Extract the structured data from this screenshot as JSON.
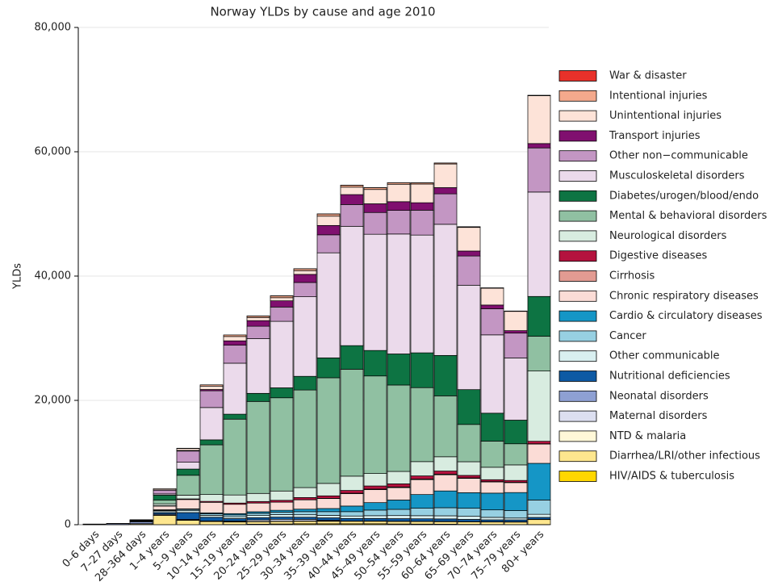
{
  "chart_data": {
    "type": "stacked-bar",
    "title": "Norway YLDs by cause and age 2010",
    "y_label": "YLDs",
    "categories": [
      "0–6 days",
      "7–27 days",
      "28–364 days",
      "1–4 years",
      "5–9 years",
      "10–14 years",
      "15–19 years",
      "20–24 years",
      "25–29 years",
      "30–34 years",
      "35–39 years",
      "40–44 years",
      "45–49 years",
      "50–54 years",
      "55–59 years",
      "60–64 years",
      "65–69 years",
      "70–74 years",
      "75–79 years",
      "80+ years"
    ],
    "ylim": [
      0,
      80000
    ],
    "yticks": [
      0,
      {
        "value": 20000,
        "label": "20,000"
      },
      {
        "value": 40000,
        "label": "40,000"
      },
      {
        "value": 60000,
        "label": "60,000"
      },
      {
        "value": 80000,
        "label": "80,000"
      }
    ],
    "grid": true,
    "series": [
      {
        "name": "War & disaster",
        "color": "#e8312a",
        "values": [
          0,
          0,
          0,
          0,
          0,
          0,
          0,
          10,
          10,
          10,
          10,
          10,
          10,
          10,
          10,
          10,
          10,
          10,
          10,
          10
        ]
      },
      {
        "name": "Intentional injuries",
        "color": "#f4a98c",
        "values": [
          0,
          0,
          0,
          0,
          50,
          200,
          250,
          250,
          300,
          300,
          350,
          300,
          300,
          250,
          200,
          150,
          100,
          50,
          50,
          50
        ]
      },
      {
        "name": "Unintentional injuries",
        "color": "#fde3d8",
        "values": [
          10,
          20,
          50,
          200,
          300,
          550,
          700,
          500,
          500,
          600,
          1500,
          1200,
          2300,
          2800,
          3000,
          3800,
          3800,
          2700,
          3100,
          7700
        ]
      },
      {
        "name": "Transport injuries",
        "color": "#800f6f",
        "values": [
          0,
          0,
          0,
          50,
          100,
          200,
          700,
          900,
          1000,
          1300,
          1500,
          1600,
          1400,
          1400,
          1200,
          1000,
          800,
          600,
          400,
          700
        ]
      },
      {
        "name": "Other non−communicable",
        "color": "#c396c3",
        "values": [
          0,
          0,
          80,
          600,
          1800,
          2700,
          2900,
          2000,
          2300,
          2300,
          2900,
          3500,
          3500,
          3800,
          4000,
          4900,
          4700,
          4200,
          4000,
          7100
        ]
      },
      {
        "name": "Musculoskeletal disorders",
        "color": "#ebdaeb",
        "values": [
          0,
          0,
          20,
          200,
          1100,
          5200,
          8200,
          8800,
          10700,
          12800,
          16900,
          19200,
          18700,
          19300,
          18950,
          21100,
          16800,
          12600,
          10000,
          16800
        ]
      },
      {
        "name": "Diabetes/urogen/blood/endo",
        "color": "#0d7443",
        "values": [
          0,
          0,
          0,
          800,
          1000,
          800,
          800,
          1300,
          1600,
          2200,
          3200,
          3800,
          4100,
          5000,
          5600,
          6500,
          5600,
          4500,
          3800,
          6400
        ]
      },
      {
        "name": "Mental & behavioral disorders",
        "color": "#90c0a2",
        "values": [
          0,
          0,
          0,
          600,
          3200,
          8000,
          12200,
          14800,
          15000,
          15700,
          17000,
          17200,
          15700,
          13900,
          11900,
          9800,
          6000,
          4200,
          3400,
          5600
        ]
      },
      {
        "name": "Neurological disorders",
        "color": "#d8ece0",
        "values": [
          0,
          0,
          30,
          300,
          600,
          1100,
          1300,
          1300,
          1500,
          1600,
          2000,
          2300,
          2000,
          2000,
          2300,
          2300,
          2200,
          2000,
          2500,
          11300
        ]
      },
      {
        "name": "Digestive diseases",
        "color": "#b4123e",
        "values": [
          0,
          0,
          0,
          50,
          100,
          150,
          200,
          250,
          300,
          350,
          400,
          450,
          500,
          500,
          500,
          500,
          400,
          300,
          300,
          400
        ]
      },
      {
        "name": "Cirrhosis",
        "color": "#e29b92",
        "values": [
          0,
          0,
          0,
          0,
          0,
          0,
          0,
          0,
          0,
          20,
          40,
          60,
          80,
          100,
          100,
          100,
          80,
          60,
          50,
          50
        ]
      },
      {
        "name": "Chronic respiratory diseases",
        "color": "#fbdcd6",
        "values": [
          0,
          0,
          50,
          600,
          1500,
          1700,
          1500,
          1400,
          1300,
          1500,
          1600,
          2000,
          2100,
          2000,
          2400,
          2600,
          2300,
          1800,
          1600,
          3100
        ]
      },
      {
        "name": "Cardio & circulatory diseases",
        "color": "#1596c6",
        "values": [
          0,
          0,
          0,
          100,
          100,
          150,
          200,
          250,
          300,
          400,
          500,
          900,
          1200,
          1500,
          2200,
          2700,
          2500,
          2700,
          2900,
          5900
        ]
      },
      {
        "name": "Cancer",
        "color": "#97d0e2",
        "values": [
          0,
          0,
          0,
          100,
          200,
          250,
          300,
          350,
          400,
          500,
          600,
          700,
          900,
          1000,
          1200,
          1300,
          1300,
          1200,
          1200,
          2300
        ]
      },
      {
        "name": "Other communicable",
        "color": "#d9eff0",
        "values": [
          0,
          0,
          50,
          250,
          300,
          300,
          300,
          350,
          400,
          400,
          400,
          400,
          450,
          500,
          500,
          500,
          500,
          400,
          300,
          500
        ]
      },
      {
        "name": "Nutritional deficiencies",
        "color": "#0e5aa4",
        "values": [
          0,
          10,
          50,
          250,
          1100,
          600,
          400,
          350,
          350,
          350,
          400,
          400,
          400,
          400,
          400,
          400,
          350,
          300,
          300,
          300
        ]
      },
      {
        "name": "Neonatal disorders",
        "color": "#8ea0d3",
        "values": [
          80,
          150,
          300,
          150,
          100,
          50,
          50,
          0,
          0,
          0,
          0,
          0,
          0,
          0,
          0,
          0,
          0,
          0,
          0,
          0
        ]
      },
      {
        "name": "Maternal disorders",
        "color": "#dcdff0",
        "values": [
          0,
          0,
          0,
          0,
          0,
          0,
          50,
          250,
          300,
          250,
          100,
          0,
          0,
          0,
          0,
          0,
          0,
          0,
          0,
          0
        ]
      },
      {
        "name": "NTD & malaria",
        "color": "#fff8d8",
        "values": [
          0,
          0,
          20,
          50,
          50,
          50,
          50,
          50,
          50,
          50,
          50,
          50,
          50,
          50,
          50,
          50,
          50,
          50,
          50,
          50
        ]
      },
      {
        "name": "Diarrhea/LRI/other infectious",
        "color": "#fde68e",
        "values": [
          10,
          20,
          150,
          1500,
          700,
          500,
          400,
          400,
          400,
          400,
          400,
          400,
          400,
          400,
          400,
          400,
          400,
          400,
          400,
          800
        ]
      },
      {
        "name": "HIV/AIDS & tuberculosis",
        "color": "#ffd700",
        "values": [
          0,
          0,
          0,
          0,
          0,
          0,
          30,
          80,
          120,
          150,
          150,
          150,
          150,
          120,
          100,
          80,
          50,
          30,
          20,
          20
        ]
      }
    ]
  }
}
